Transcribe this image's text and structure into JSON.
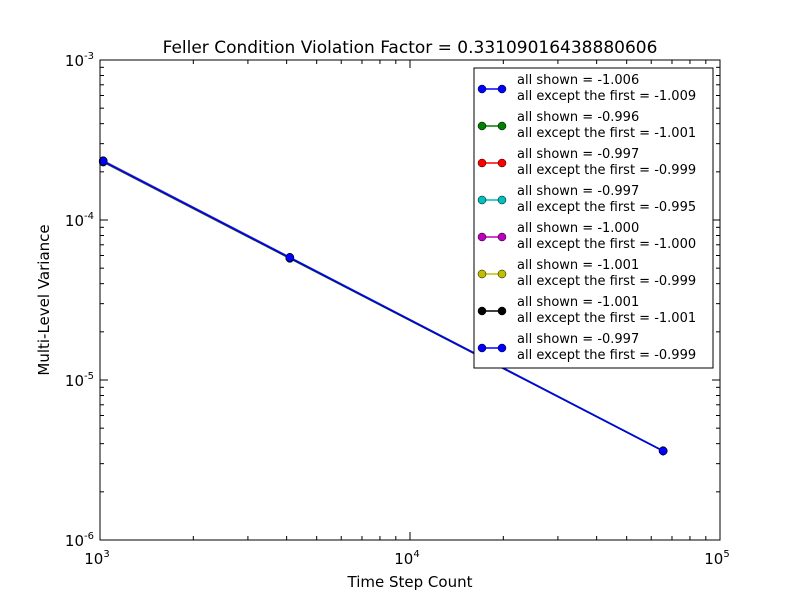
{
  "chart_data": {
    "type": "line",
    "title": "Feller Condition Violation Factor = 0.33109016438880606",
    "xlabel": "Time Step Count",
    "ylabel": "Multi-Level Variance",
    "xscale": "log",
    "yscale": "log",
    "xlim": [
      1000,
      100000
    ],
    "ylim": [
      1e-06,
      0.001
    ],
    "x_ticks": [
      {
        "value": 1000,
        "base": "10",
        "exp": "3"
      },
      {
        "value": 10000,
        "base": "10",
        "exp": "4"
      },
      {
        "value": 100000,
        "base": "10",
        "exp": "5"
      }
    ],
    "y_ticks": [
      {
        "value": 1e-06,
        "base": "10",
        "exp": "-6"
      },
      {
        "value": 1e-05,
        "base": "10",
        "exp": "-5"
      },
      {
        "value": 0.0001,
        "base": "10",
        "exp": "-4"
      },
      {
        "value": 0.001,
        "base": "10",
        "exp": "-3"
      }
    ],
    "grid": false,
    "legend_position": "top-right",
    "series": [
      {
        "label": [
          "all shown = -1.006",
          "all except the first = -1.009"
        ],
        "color": "#0000ff",
        "x": [
          1024,
          4096,
          65536
        ],
        "y": [
          0.000235,
          5.85e-05,
          3.6e-06
        ]
      },
      {
        "label": [
          "all shown = -0.996",
          "all except the first = -1.001"
        ],
        "color": "#008000",
        "x": [
          1024,
          4096,
          65536
        ],
        "y": [
          0.00023,
          5.75e-05,
          3.6e-06
        ]
      },
      {
        "label": [
          "all shown = -0.997",
          "all except the first = -0.999"
        ],
        "color": "#ff0000",
        "x": [
          1024,
          4096,
          65536
        ],
        "y": [
          0.000232,
          5.8e-05,
          3.6e-06
        ]
      },
      {
        "label": [
          "all shown = -0.997",
          "all except the first = -0.995"
        ],
        "color": "#00bfbf",
        "x": [
          1024,
          4096,
          65536
        ],
        "y": [
          0.000233,
          5.83e-05,
          3.62e-06
        ]
      },
      {
        "label": [
          "all shown = -1.000",
          "all except the first = -1.000"
        ],
        "color": "#bf00bf",
        "x": [
          1024,
          4096,
          65536
        ],
        "y": [
          0.000232,
          5.8e-05,
          3.6e-06
        ]
      },
      {
        "label": [
          "all shown = -1.001",
          "all except the first = -0.999"
        ],
        "color": "#bfbf00",
        "x": [
          1024,
          4096,
          65536
        ],
        "y": [
          0.000234,
          5.82e-05,
          3.6e-06
        ]
      },
      {
        "label": [
          "all shown = -1.001",
          "all except the first = -1.001"
        ],
        "color": "#000000",
        "x": [
          1024,
          4096,
          65536
        ],
        "y": [
          0.000233,
          5.8e-05,
          3.6e-06
        ]
      },
      {
        "label": [
          "all shown = -0.997",
          "all except the first = -0.999"
        ],
        "color": "#0000ff",
        "x": [
          1024,
          4096,
          65536
        ],
        "y": [
          0.000233,
          5.82e-05,
          3.6e-06
        ]
      }
    ]
  }
}
